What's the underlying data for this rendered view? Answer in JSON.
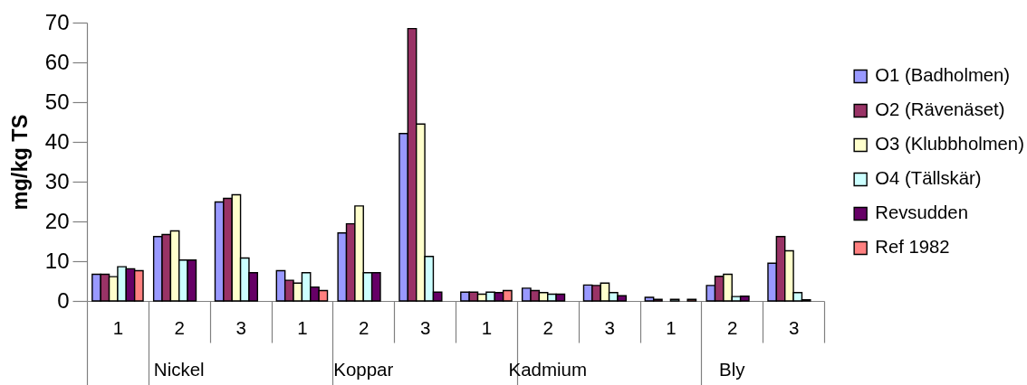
{
  "chart_data": {
    "type": "bar",
    "ylabel": "mg/kg TS",
    "categories": [
      "1",
      "2",
      "3",
      "1",
      "2",
      "3",
      "1",
      "2",
      "3",
      "1",
      "2",
      "3"
    ],
    "annotations": [
      "Nickel",
      "Koppar",
      "Kadmium",
      "Bly"
    ],
    "series": [
      {
        "name": "O1 (Badholmen)",
        "color": "#9999ff",
        "values": [
          6.7,
          16.2,
          24.9,
          7.6,
          17.1,
          42.1,
          2.2,
          3.2,
          4.0,
          0.9,
          3.9,
          9.5
        ]
      },
      {
        "name": "O2 (Rävenäset)",
        "color": "#993366",
        "values": [
          6.7,
          16.7,
          25.8,
          5.2,
          19.4,
          68.5,
          2.2,
          2.6,
          3.9,
          0.4,
          6.2,
          16.2
        ]
      },
      {
        "name": "O3 (Klubbholmen)",
        "color": "#ffffcc",
        "values": [
          6.1,
          17.6,
          26.7,
          4.5,
          23.9,
          44.5,
          1.7,
          2.1,
          4.5,
          null,
          6.7,
          12.6
        ]
      },
      {
        "name": "O4 (Tällskär)",
        "color": "#ccffff",
        "values": [
          8.6,
          10.3,
          10.8,
          7.1,
          7.1,
          11.2,
          2.2,
          1.7,
          2.1,
          0.4,
          1.1,
          2.1
        ]
      },
      {
        "name": "Revsudden",
        "color": "#660066",
        "values": [
          8.1,
          10.3,
          7.1,
          3.5,
          7.1,
          2.2,
          2.1,
          1.7,
          1.3,
          null,
          1.2,
          0.3
        ]
      },
      {
        "name": "Ref 1982",
        "color": "#ff8080",
        "values": [
          7.6,
          null,
          null,
          2.6,
          null,
          null,
          2.6,
          null,
          null,
          0.4,
          null,
          null
        ]
      }
    ],
    "ylim": [
      0,
      70
    ],
    "yticks": [
      0,
      10,
      20,
      30,
      40,
      50,
      60,
      70
    ],
    "grid": false,
    "legend": "right"
  }
}
